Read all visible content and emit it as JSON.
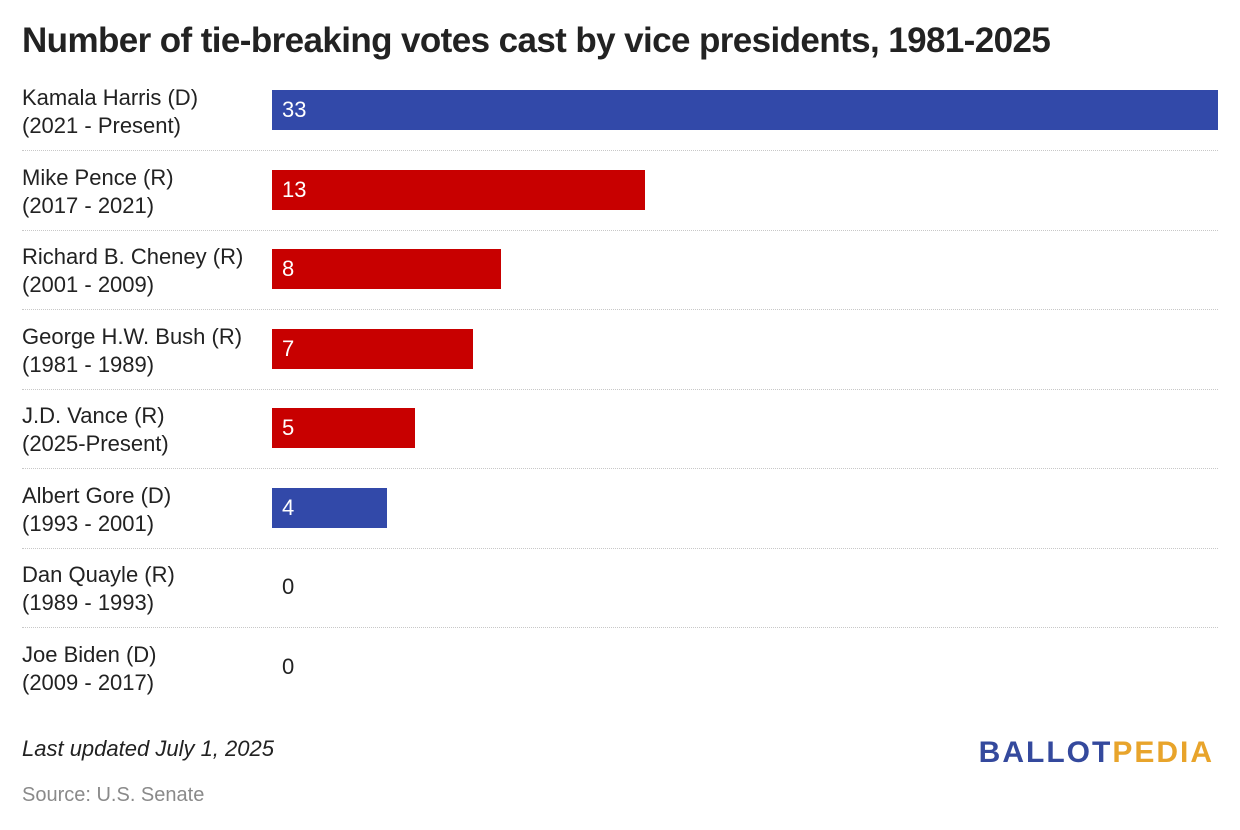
{
  "title": "Number of tie-breaking votes cast by vice presidents, 1981-2025",
  "colors": {
    "D": "#3249a9",
    "R": "#c80000",
    "text": "#222222"
  },
  "chart_data": {
    "type": "bar",
    "orientation": "horizontal",
    "title": "Number of tie-breaking votes cast by vice presidents, 1981-2025",
    "xlim": [
      0,
      33
    ],
    "grid": false,
    "rows": [
      {
        "name": "Kamala Harris (D)",
        "term": "(2021 - Present)",
        "value": 33,
        "party": "D"
      },
      {
        "name": "Mike Pence (R)",
        "term": "(2017 - 2021)",
        "value": 13,
        "party": "R"
      },
      {
        "name": "Richard B. Cheney (R)",
        "term": "(2001 - 2009)",
        "value": 8,
        "party": "R"
      },
      {
        "name": "George H.W. Bush (R)",
        "term": "(1981 - 1989)",
        "value": 7,
        "party": "R"
      },
      {
        "name": "J.D. Vance (R)",
        "term": "(2025-Present)",
        "value": 5,
        "party": "R"
      },
      {
        "name": "Albert Gore (D)",
        "term": "(1993 - 2001)",
        "value": 4,
        "party": "D"
      },
      {
        "name": "Dan Quayle (R)",
        "term": "(1989 - 1993)",
        "value": 0,
        "party": "R"
      },
      {
        "name": "Joe Biden (D)",
        "term": "(2009 - 2017)",
        "value": 0,
        "party": "D"
      }
    ]
  },
  "footer": {
    "note": "Last updated July 1, 2025",
    "source": "Source: U.S. Senate",
    "logo_part1": "BALLOT",
    "logo_part2": "PEDIA"
  }
}
